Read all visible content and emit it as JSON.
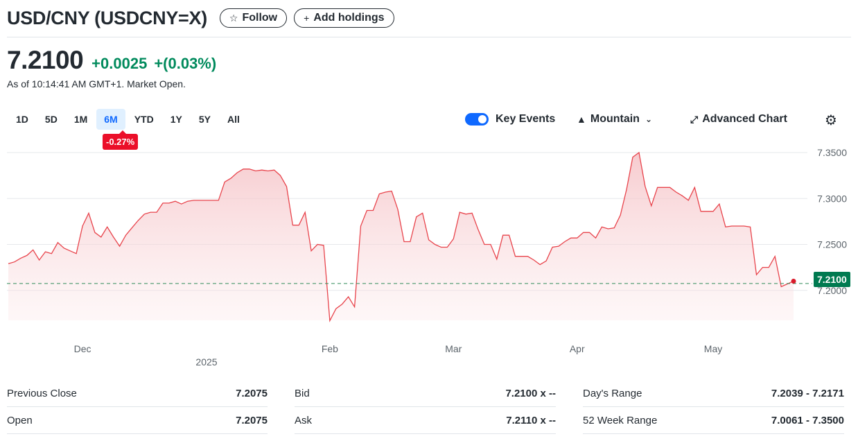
{
  "header": {
    "title": "USD/CNY (USDCNY=X)",
    "follow_label": "Follow",
    "add_holdings_label": "Add holdings"
  },
  "quote": {
    "price": "7.2100",
    "change": "+0.0025",
    "change_pct": "+(0.03%)",
    "as_of": "As of 10:14:41 AM GMT+1. Market Open.",
    "up_color": "#008a5c"
  },
  "ranges": {
    "items": [
      "1D",
      "5D",
      "1M",
      "6M",
      "YTD",
      "1Y",
      "5Y",
      "All"
    ],
    "selected": "6M",
    "period_change": "-0.27%"
  },
  "toolbar": {
    "key_events_label": "Key Events",
    "key_events_on": true,
    "chart_type_label": "Mountain",
    "advanced_chart_label": "Advanced Chart"
  },
  "chart_data": {
    "type": "area",
    "line_color": "#e8434b",
    "ylim": [
      7.16,
      7.36
    ],
    "yticks": [
      "7.3500",
      "7.3000",
      "7.2500",
      "7.2000"
    ],
    "xtick_labels": [
      "Dec",
      "Feb",
      "Mar",
      "Apr",
      "May"
    ],
    "year_label": "2025",
    "current_value": "7.2100",
    "reference_value": 7.2075,
    "points": [
      [
        0,
        7.229
      ],
      [
        2,
        7.231
      ],
      [
        4,
        7.235
      ],
      [
        6,
        7.238
      ],
      [
        8,
        7.244
      ],
      [
        10,
        7.233
      ],
      [
        12,
        7.242
      ],
      [
        14,
        7.24
      ],
      [
        16,
        7.252
      ],
      [
        18,
        7.246
      ],
      [
        20,
        7.243
      ],
      [
        22,
        7.24
      ],
      [
        24,
        7.27
      ],
      [
        26,
        7.284
      ],
      [
        28,
        7.263
      ],
      [
        30,
        7.258
      ],
      [
        32,
        7.269
      ],
      [
        34,
        7.258
      ],
      [
        36,
        7.248
      ],
      [
        38,
        7.26
      ],
      [
        40,
        7.268
      ],
      [
        42,
        7.276
      ],
      [
        44,
        7.283
      ],
      [
        46,
        7.285
      ],
      [
        48,
        7.285
      ],
      [
        50,
        7.295
      ],
      [
        52,
        7.295
      ],
      [
        54,
        7.297
      ],
      [
        56,
        7.294
      ],
      [
        58,
        7.297
      ],
      [
        60,
        7.298
      ],
      [
        62,
        7.298
      ],
      [
        64,
        7.298
      ],
      [
        66,
        7.298
      ],
      [
        68,
        7.298
      ],
      [
        70,
        7.318
      ],
      [
        72,
        7.322
      ],
      [
        74,
        7.328
      ],
      [
        76,
        7.332
      ],
      [
        78,
        7.332
      ],
      [
        80,
        7.33
      ],
      [
        82,
        7.331
      ],
      [
        84,
        7.33
      ],
      [
        86,
        7.331
      ],
      [
        88,
        7.325
      ],
      [
        90,
        7.313
      ],
      [
        92,
        7.271
      ],
      [
        94,
        7.271
      ],
      [
        96,
        7.285
      ],
      [
        98,
        7.243
      ],
      [
        100,
        7.25
      ],
      [
        102,
        7.249
      ],
      [
        104,
        7.167
      ],
      [
        106,
        7.18
      ],
      [
        108,
        7.185
      ],
      [
        110,
        7.193
      ],
      [
        112,
        7.182
      ],
      [
        114,
        7.27
      ],
      [
        116,
        7.287
      ],
      [
        118,
        7.287
      ],
      [
        120,
        7.305
      ],
      [
        122,
        7.307
      ],
      [
        124,
        7.308
      ],
      [
        126,
        7.288
      ],
      [
        128,
        7.253
      ],
      [
        130,
        7.253
      ],
      [
        132,
        7.28
      ],
      [
        134,
        7.284
      ],
      [
        136,
        7.255
      ],
      [
        138,
        7.25
      ],
      [
        140,
        7.247
      ],
      [
        142,
        7.247
      ],
      [
        144,
        7.256
      ],
      [
        146,
        7.285
      ],
      [
        148,
        7.283
      ],
      [
        150,
        7.284
      ],
      [
        152,
        7.266
      ],
      [
        154,
        7.25
      ],
      [
        156,
        7.25
      ],
      [
        158,
        7.234
      ],
      [
        160,
        7.26
      ],
      [
        162,
        7.26
      ],
      [
        164,
        7.237
      ],
      [
        166,
        7.237
      ],
      [
        168,
        7.237
      ],
      [
        170,
        7.233
      ],
      [
        172,
        7.228
      ],
      [
        174,
        7.232
      ],
      [
        176,
        7.247
      ],
      [
        178,
        7.248
      ],
      [
        180,
        7.253
      ],
      [
        182,
        7.257
      ],
      [
        184,
        7.257
      ],
      [
        186,
        7.263
      ],
      [
        188,
        7.263
      ],
      [
        190,
        7.257
      ],
      [
        192,
        7.269
      ],
      [
        194,
        7.267
      ],
      [
        196,
        7.268
      ],
      [
        198,
        7.282
      ],
      [
        200,
        7.31
      ],
      [
        202,
        7.345
      ],
      [
        204,
        7.35
      ],
      [
        206,
        7.313
      ],
      [
        208,
        7.292
      ],
      [
        210,
        7.312
      ],
      [
        212,
        7.312
      ],
      [
        214,
        7.312
      ],
      [
        216,
        7.307
      ],
      [
        218,
        7.303
      ],
      [
        220,
        7.298
      ],
      [
        222,
        7.312
      ],
      [
        224,
        7.286
      ],
      [
        226,
        7.286
      ],
      [
        228,
        7.286
      ],
      [
        230,
        7.294
      ],
      [
        232,
        7.269
      ],
      [
        234,
        7.27
      ],
      [
        236,
        7.27
      ],
      [
        238,
        7.27
      ],
      [
        240,
        7.269
      ],
      [
        242,
        7.217
      ],
      [
        244,
        7.225
      ],
      [
        246,
        7.225
      ],
      [
        248,
        7.237
      ],
      [
        250,
        7.204
      ],
      [
        252,
        7.207
      ],
      [
        254,
        7.21
      ]
    ],
    "month_ticks": [
      [
        24,
        "Dec"
      ],
      [
        104,
        "Feb"
      ],
      [
        144,
        "Mar"
      ],
      [
        184,
        "Apr"
      ],
      [
        228,
        "May"
      ]
    ]
  },
  "stats": {
    "rows": [
      [
        [
          "Previous Close",
          "7.2075"
        ],
        [
          "Bid",
          "7.2100 x --"
        ],
        [
          "Day's Range",
          "7.2039 - 7.2171"
        ]
      ],
      [
        [
          "Open",
          "7.2075"
        ],
        [
          "Ask",
          "7.2110 x --"
        ],
        [
          "52 Week Range",
          "7.0061 - 7.3500"
        ]
      ]
    ]
  }
}
